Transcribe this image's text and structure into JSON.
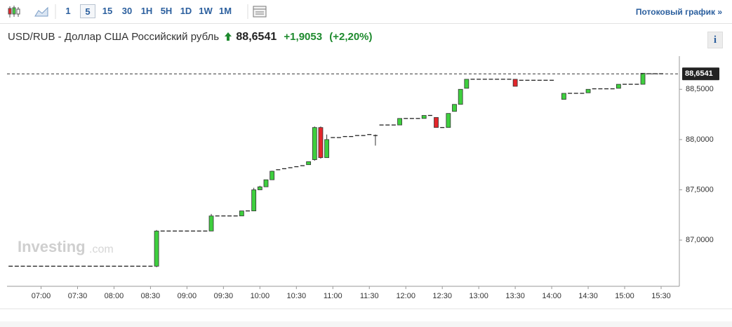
{
  "toolbar": {
    "intervals": [
      "1",
      "5",
      "15",
      "30",
      "1H",
      "5H",
      "1D",
      "1W",
      "1M"
    ],
    "active_interval": "5",
    "stream_link": "Потоковый график »"
  },
  "header": {
    "symbol": "USD/RUB - Доллар США Российский рубль",
    "change": "+1,9053",
    "change_pct": "(+2,20%)",
    "info_button": "i"
  },
  "chart_data": {
    "type": "candlestick",
    "watermark": "Investing",
    "watermark_suffix": ".com",
    "up_color": "#3ecf3e",
    "down_color": "#e3262b",
    "flat_color": "#222222",
    "last": {
      "value": 88.6541,
      "label": "88,6541"
    },
    "x": [
      395,
      400,
      405,
      410,
      415,
      420,
      425,
      430,
      435,
      440,
      445,
      450,
      455,
      460,
      465,
      470,
      475,
      480,
      485,
      490,
      495,
      500,
      505,
      510,
      515,
      520,
      525,
      530,
      535,
      540,
      545,
      550,
      555,
      560,
      565,
      570,
      575,
      580,
      585,
      590,
      595,
      600,
      605,
      610,
      615,
      620,
      625,
      630,
      635,
      640,
      645,
      650,
      655,
      660,
      665,
      670,
      675,
      680,
      685,
      690,
      695,
      700,
      705,
      710,
      715,
      720,
      725,
      730,
      735,
      740,
      745,
      750,
      755,
      760,
      765,
      770,
      775,
      780,
      785,
      790,
      795,
      800,
      805,
      810,
      815,
      820,
      825,
      830,
      835,
      840,
      850,
      855,
      860,
      865,
      870,
      875,
      880,
      885,
      890,
      895,
      900,
      905,
      910,
      915,
      920,
      925,
      930
    ],
    "open": [
      86.74,
      86.74,
      86.74,
      86.74,
      86.74,
      86.74,
      86.74,
      86.74,
      86.74,
      86.74,
      86.74,
      86.74,
      86.74,
      86.74,
      86.74,
      86.74,
      86.74,
      86.74,
      86.74,
      86.74,
      86.74,
      86.74,
      86.74,
      86.74,
      86.74,
      87.09,
      87.09,
      87.09,
      87.09,
      87.09,
      87.09,
      87.09,
      87.09,
      87.09,
      87.24,
      87.24,
      87.24,
      87.24,
      87.24,
      87.29,
      87.29,
      87.5,
      87.53,
      87.6,
      87.7,
      87.71,
      87.72,
      87.73,
      87.74,
      87.75,
      87.8,
      88.12,
      87.82,
      88.02,
      88.02,
      88.03,
      88.03,
      88.04,
      88.04,
      88.05,
      88.04,
      88.145,
      88.145,
      88.145,
      88.145,
      88.21,
      88.21,
      88.21,
      88.21,
      88.24,
      88.22,
      88.12,
      88.12,
      88.28,
      88.35,
      88.51,
      88.6,
      88.6,
      88.6,
      88.6,
      88.6,
      88.6,
      88.6,
      88.6,
      88.59,
      88.59,
      88.59,
      88.59,
      88.59,
      88.59,
      88.4,
      88.46,
      88.46,
      88.46,
      88.465,
      88.505,
      88.505,
      88.505,
      88.505,
      88.51,
      88.55,
      88.55,
      88.55,
      88.55,
      88.655,
      88.655,
      88.655
    ],
    "high": [
      86.74,
      86.74,
      86.74,
      86.74,
      86.74,
      86.74,
      86.74,
      86.74,
      86.74,
      86.74,
      86.74,
      86.74,
      86.74,
      86.74,
      86.74,
      86.74,
      86.74,
      86.74,
      86.74,
      86.74,
      86.74,
      86.74,
      86.74,
      86.74,
      87.1,
      87.09,
      87.09,
      87.09,
      87.09,
      87.09,
      87.09,
      87.09,
      87.09,
      87.26,
      87.24,
      87.24,
      87.24,
      87.24,
      87.29,
      87.29,
      87.52,
      87.54,
      87.6,
      87.69,
      87.7,
      87.71,
      87.72,
      87.73,
      87.74,
      87.78,
      88.13,
      88.13,
      88.05,
      88.02,
      88.02,
      88.03,
      88.03,
      88.04,
      88.04,
      88.05,
      88.05,
      88.145,
      88.145,
      88.145,
      88.21,
      88.21,
      88.21,
      88.21,
      88.24,
      88.24,
      88.22,
      88.12,
      88.26,
      88.35,
      88.5,
      88.6,
      88.6,
      88.6,
      88.6,
      88.6,
      88.6,
      88.6,
      88.6,
      88.6,
      88.59,
      88.59,
      88.59,
      88.59,
      88.59,
      88.59,
      88.46,
      88.46,
      88.46,
      88.46,
      88.5,
      88.505,
      88.505,
      88.505,
      88.505,
      88.55,
      88.55,
      88.55,
      88.55,
      88.66,
      88.655,
      88.655,
      88.655
    ],
    "low": [
      86.74,
      86.74,
      86.74,
      86.74,
      86.74,
      86.74,
      86.74,
      86.74,
      86.74,
      86.74,
      86.74,
      86.74,
      86.74,
      86.74,
      86.74,
      86.74,
      86.74,
      86.74,
      86.74,
      86.74,
      86.74,
      86.74,
      86.74,
      86.74,
      86.73,
      87.09,
      87.09,
      87.09,
      87.09,
      87.09,
      87.09,
      87.09,
      87.09,
      87.09,
      87.24,
      87.24,
      87.24,
      87.24,
      87.24,
      87.29,
      87.29,
      87.5,
      87.53,
      87.6,
      87.7,
      87.71,
      87.72,
      87.73,
      87.74,
      87.75,
      87.79,
      87.81,
      87.82,
      88.02,
      88.02,
      88.03,
      88.03,
      88.04,
      88.04,
      88.05,
      87.94,
      88.145,
      88.145,
      88.145,
      88.145,
      88.21,
      88.21,
      88.21,
      88.21,
      88.24,
      88.12,
      88.12,
      88.12,
      88.28,
      88.35,
      88.51,
      88.6,
      88.6,
      88.6,
      88.6,
      88.6,
      88.6,
      88.6,
      88.53,
      88.59,
      88.59,
      88.59,
      88.59,
      88.59,
      88.59,
      88.4,
      88.46,
      88.46,
      88.46,
      88.465,
      88.505,
      88.505,
      88.505,
      88.505,
      88.51,
      88.55,
      88.55,
      88.55,
      88.55,
      88.655,
      88.655,
      88.655
    ],
    "close": [
      86.74,
      86.74,
      86.74,
      86.74,
      86.74,
      86.74,
      86.74,
      86.74,
      86.74,
      86.74,
      86.74,
      86.74,
      86.74,
      86.74,
      86.74,
      86.74,
      86.74,
      86.74,
      86.74,
      86.74,
      86.74,
      86.74,
      86.74,
      86.74,
      87.09,
      87.09,
      87.09,
      87.09,
      87.09,
      87.09,
      87.09,
      87.09,
      87.09,
      87.24,
      87.24,
      87.24,
      87.24,
      87.24,
      87.29,
      87.29,
      87.5,
      87.53,
      87.6,
      87.685,
      87.7,
      87.71,
      87.72,
      87.73,
      87.74,
      87.78,
      88.12,
      87.82,
      88.0,
      88.02,
      88.02,
      88.03,
      88.03,
      88.04,
      88.04,
      88.05,
      88.04,
      88.145,
      88.145,
      88.145,
      88.21,
      88.21,
      88.21,
      88.21,
      88.24,
      88.24,
      88.12,
      88.12,
      88.26,
      88.35,
      88.5,
      88.6,
      88.6,
      88.6,
      88.6,
      88.6,
      88.6,
      88.6,
      88.6,
      88.53,
      88.59,
      88.59,
      88.59,
      88.59,
      88.59,
      88.59,
      88.46,
      88.46,
      88.46,
      88.46,
      88.5,
      88.505,
      88.505,
      88.505,
      88.505,
      88.55,
      88.55,
      88.55,
      88.55,
      88.66,
      88.655,
      88.655,
      88.655
    ],
    "xlim": [
      392,
      945
    ],
    "ylim": [
      86.54,
      88.83
    ],
    "grid": false,
    "xticks": [
      {
        "value": 420,
        "label": "07:00"
      },
      {
        "value": 450,
        "label": "07:30"
      },
      {
        "value": 480,
        "label": "08:00"
      },
      {
        "value": 510,
        "label": "08:30"
      },
      {
        "value": 540,
        "label": "09:00"
      },
      {
        "value": 570,
        "label": "09:30"
      },
      {
        "value": 600,
        "label": "10:00"
      },
      {
        "value": 630,
        "label": "10:30"
      },
      {
        "value": 660,
        "label": "11:00"
      },
      {
        "value": 690,
        "label": "11:30"
      },
      {
        "value": 720,
        "label": "12:00"
      },
      {
        "value": 750,
        "label": "12:30"
      },
      {
        "value": 780,
        "label": "13:00"
      },
      {
        "value": 810,
        "label": "13:30"
      },
      {
        "value": 840,
        "label": "14:00"
      },
      {
        "value": 870,
        "label": "14:30"
      },
      {
        "value": 900,
        "label": "15:00"
      },
      {
        "value": 930,
        "label": "15:30"
      }
    ],
    "yticks": [
      {
        "value": 87,
        "label": "87,0000"
      },
      {
        "value": 87.5,
        "label": "87,5000"
      },
      {
        "value": 88,
        "label": "88,0000"
      },
      {
        "value": 88.5,
        "label": "88,5000"
      }
    ]
  }
}
